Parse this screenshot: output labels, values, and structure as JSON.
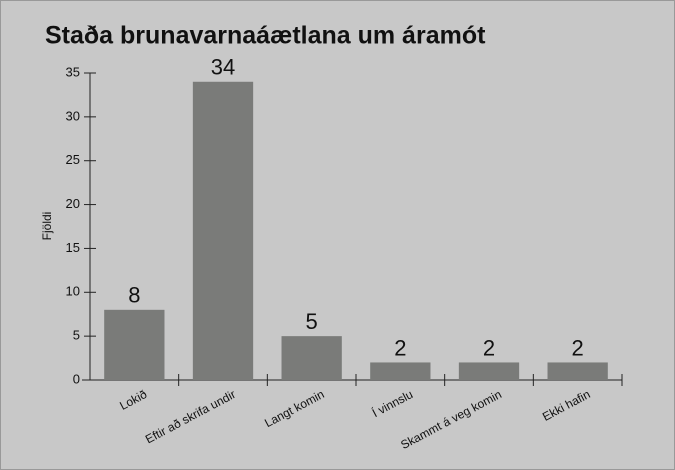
{
  "chart_data": {
    "type": "bar",
    "title": "Staða brunavarnaáætlana um áramót",
    "y_label": "Fjöldi",
    "categories": [
      "Lokið",
      "Eftir að skrifa undir",
      "Langt komin",
      "Í vinnslu",
      "Skammt á veg komin",
      "Ekki hafin"
    ],
    "values": [
      8,
      34,
      5,
      2,
      2,
      2
    ],
    "color": "#7a7b79",
    "ylim": [
      0,
      35
    ],
    "yticks": [
      0,
      5,
      10,
      15,
      20,
      25,
      30,
      35
    ],
    "grid": false
  }
}
